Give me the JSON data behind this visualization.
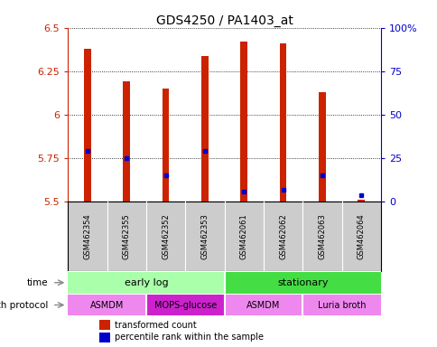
{
  "title": "GDS4250 / PA1403_at",
  "samples": [
    "GSM462354",
    "GSM462355",
    "GSM462352",
    "GSM462353",
    "GSM462061",
    "GSM462062",
    "GSM462063",
    "GSM462064"
  ],
  "transformed_counts": [
    6.38,
    6.19,
    6.15,
    6.34,
    6.42,
    6.41,
    6.13,
    5.51
  ],
  "transformed_bottom": [
    5.5,
    5.5,
    5.5,
    5.5,
    5.5,
    5.5,
    5.5,
    5.5
  ],
  "percentile_values": [
    5.79,
    5.75,
    5.65,
    5.79,
    5.56,
    5.57,
    5.65,
    5.54
  ],
  "ylim": [
    5.5,
    6.5
  ],
  "yticks": [
    5.5,
    5.75,
    6.0,
    6.25,
    6.5
  ],
  "ytick_labels": [
    "5.5",
    "5.75",
    "6",
    "6.25",
    "6.5"
  ],
  "right_yticks": [
    0,
    25,
    50,
    75,
    100
  ],
  "right_ytick_labels": [
    "0",
    "25",
    "50",
    "75",
    "100%"
  ],
  "bar_color": "#cc2200",
  "percentile_color": "#0000cc",
  "bar_width": 0.18,
  "grid_color": "#000000",
  "time_groups": [
    {
      "label": "early log",
      "start": 0,
      "end": 3,
      "color": "#aaffaa"
    },
    {
      "label": "stationary",
      "start": 4,
      "end": 7,
      "color": "#44dd44"
    }
  ],
  "protocol_groups": [
    {
      "label": "ASMDM",
      "start": 0,
      "end": 1,
      "color": "#ee88ee"
    },
    {
      "label": "MOPS-glucose",
      "start": 2,
      "end": 3,
      "color": "#cc22cc"
    },
    {
      "label": "ASMDM",
      "start": 4,
      "end": 5,
      "color": "#ee88ee"
    },
    {
      "label": "Luria broth",
      "start": 6,
      "end": 7,
      "color": "#ee88ee"
    }
  ],
  "time_label": "time",
  "protocol_label": "growth protocol",
  "legend_red_label": "transformed count",
  "legend_blue_label": "percentile rank within the sample",
  "left_axis_color": "#cc2200",
  "right_axis_color": "#0000cc",
  "bg_color": "#ffffff",
  "sample_bg_color": "#cccccc"
}
